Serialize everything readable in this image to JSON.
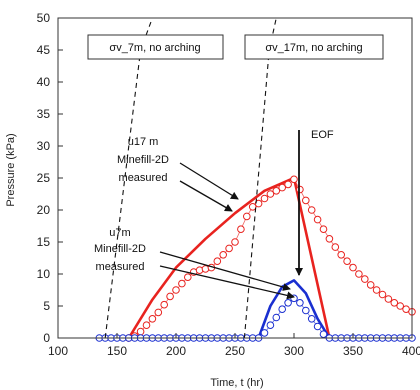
{
  "chart_data": {
    "type": "line",
    "title": "",
    "xlabel": "Time, t (hr)",
    "ylabel": "Pressure (kPa)",
    "xlim": [
      100,
      400
    ],
    "ylim": [
      0,
      50
    ],
    "xticks": [
      "100",
      "150",
      "200",
      "250",
      "300",
      "350",
      "400"
    ],
    "yticks": [
      "0",
      "5",
      "10",
      "15",
      "20",
      "25",
      "30",
      "35",
      "40",
      "45",
      "50"
    ],
    "grid": false,
    "colors": {
      "simulated": "#e8231f",
      "measured": "#e8231f",
      "simulated_7m": "#1a2fd0",
      "measured_7m": "#1a2fd0",
      "dashed": "#111111"
    },
    "series": [
      {
        "id": "u17_sim",
        "style": "solid",
        "color": "#e8231f",
        "x": [
          160,
          180,
          200,
          225,
          250,
          275,
          300,
          330
        ],
        "y": [
          0,
          6,
          11,
          15.5,
          19.5,
          23,
          25,
          0
        ]
      },
      {
        "id": "u17_meas",
        "style": "markers",
        "color": "#e8231f",
        "x": [
          160,
          165,
          170,
          175,
          180,
          185,
          190,
          195,
          200,
          205,
          210,
          215,
          220,
          225,
          230,
          235,
          240,
          245,
          250,
          255,
          260,
          265,
          270,
          275,
          280,
          285,
          290,
          295,
          300,
          305,
          310,
          315,
          320,
          325,
          330,
          335,
          340,
          345,
          350,
          355,
          360,
          365,
          370,
          375,
          380,
          385,
          390,
          395,
          400
        ],
        "y": [
          0,
          0.3,
          1,
          2,
          3,
          4,
          5.2,
          6.5,
          7.5,
          8.5,
          9.5,
          10.3,
          10.6,
          10.8,
          11,
          12,
          13,
          14,
          15,
          17,
          19,
          20.5,
          21,
          21.8,
          22.5,
          23,
          23.5,
          24,
          24.8,
          23.2,
          21.5,
          20,
          18.5,
          17,
          15.5,
          14.2,
          13,
          12,
          11,
          10,
          9.2,
          8.3,
          7.5,
          6.8,
          6.1,
          5.5,
          5,
          4.5,
          4.1
        ]
      },
      {
        "id": "u7_sim",
        "style": "solid",
        "color": "#1a2fd0",
        "x": [
          270,
          280,
          290,
          300,
          310,
          320,
          330
        ],
        "y": [
          0,
          5,
          8,
          9,
          7,
          3,
          0
        ]
      },
      {
        "id": "u7_meas",
        "style": "markers",
        "color": "#1a2fd0",
        "x": [
          135,
          140,
          145,
          150,
          155,
          160,
          165,
          170,
          175,
          180,
          185,
          190,
          195,
          200,
          205,
          210,
          215,
          220,
          225,
          230,
          235,
          240,
          245,
          250,
          255,
          260,
          265,
          270,
          275,
          280,
          285,
          290,
          295,
          300,
          305,
          310,
          315,
          320,
          325,
          330,
          335,
          340,
          345,
          350,
          355,
          360,
          365,
          370,
          375,
          380,
          385,
          390,
          395,
          400
        ],
        "y": [
          0,
          0,
          0,
          0,
          0,
          0,
          0,
          0,
          0,
          0,
          0,
          0,
          0,
          0,
          0,
          0,
          0,
          0,
          0,
          0,
          0,
          0,
          0,
          0,
          0,
          0,
          0,
          0,
          0.8,
          2,
          3.2,
          4.5,
          5.5,
          6.2,
          5.5,
          4.3,
          3,
          1.8,
          0.6,
          0,
          0,
          0,
          0,
          0,
          0,
          0,
          0,
          0,
          0,
          0,
          0,
          0,
          0,
          0
        ]
      },
      {
        "id": "sigma_7m",
        "style": "dashed",
        "color": "#111111",
        "x": [
          140,
          150,
          160,
          170,
          180
        ],
        "y": [
          0,
          15,
          30,
          45,
          50
        ]
      },
      {
        "id": "sigma_17m",
        "style": "dashed",
        "color": "#111111",
        "x": [
          258,
          265,
          272,
          279,
          285
        ],
        "y": [
          0,
          15,
          30,
          45,
          50
        ]
      }
    ],
    "annotations": {
      "box_7m": "σv_7m, no arching",
      "box_17m": "σv_17m, no arching",
      "u17_label": "u17 m",
      "u17_model": "Minefill-2D",
      "u17_measured": "measured",
      "u7_label": "u7m",
      "u7_model": "Minefill-2D",
      "u7_measured": "measured",
      "eof": "EOF"
    }
  }
}
